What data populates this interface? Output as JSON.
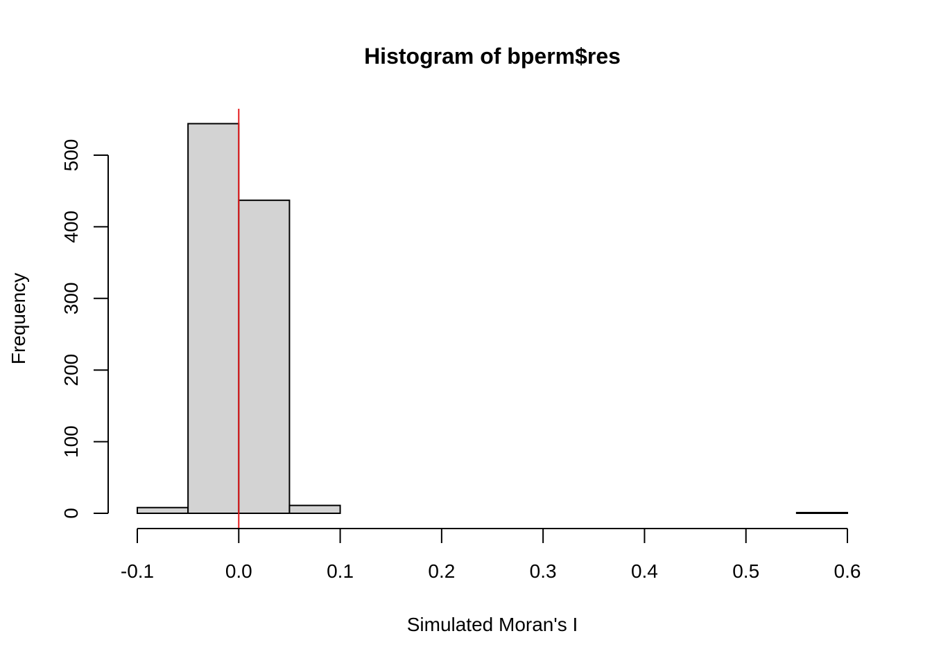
{
  "chart_data": {
    "type": "bar",
    "title": "Histogram of bperm$res",
    "xlabel": "Simulated Moran's I",
    "ylabel": "Frequency",
    "bins": [
      {
        "from": -0.1,
        "to": -0.05,
        "count": 8
      },
      {
        "from": -0.05,
        "to": 0.0,
        "count": 544
      },
      {
        "from": 0.0,
        "to": 0.05,
        "count": 437
      },
      {
        "from": 0.05,
        "to": 0.1,
        "count": 11
      },
      {
        "from": 0.1,
        "to": 0.15,
        "count": 0
      },
      {
        "from": 0.15,
        "to": 0.2,
        "count": 0
      },
      {
        "from": 0.2,
        "to": 0.25,
        "count": 0
      },
      {
        "from": 0.25,
        "to": 0.3,
        "count": 0
      },
      {
        "from": 0.3,
        "to": 0.35,
        "count": 0
      },
      {
        "from": 0.35,
        "to": 0.4,
        "count": 0
      },
      {
        "from": 0.4,
        "to": 0.45,
        "count": 0
      },
      {
        "from": 0.45,
        "to": 0.5,
        "count": 0
      },
      {
        "from": 0.5,
        "to": 0.55,
        "count": 0
      },
      {
        "from": 0.55,
        "to": 0.6,
        "count": 1
      }
    ],
    "x_ticks": [
      "-0.1",
      "0.0",
      "0.1",
      "0.2",
      "0.3",
      "0.4",
      "0.5",
      "0.6"
    ],
    "x_tick_values": [
      -0.1,
      0.0,
      0.1,
      0.2,
      0.3,
      0.4,
      0.5,
      0.6
    ],
    "y_ticks": [
      "0",
      "100",
      "200",
      "300",
      "400",
      "500"
    ],
    "y_tick_values": [
      0,
      100,
      200,
      300,
      400,
      500
    ],
    "xlim": [
      -0.1,
      0.6
    ],
    "ylim": [
      0,
      500
    ],
    "reference_line": {
      "x": 0.0,
      "color": "#e41a1c"
    },
    "bar_fill": "#d3d3d3",
    "bar_stroke": "#000000",
    "grid": false,
    "legend": "none"
  }
}
